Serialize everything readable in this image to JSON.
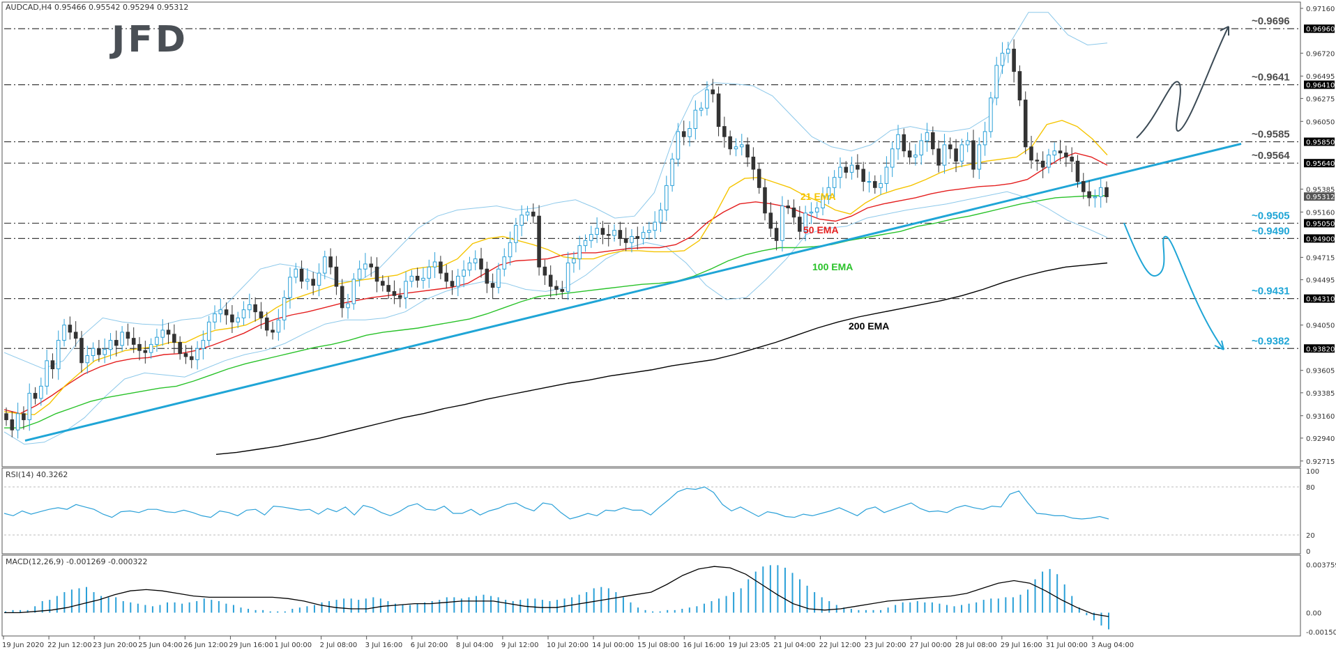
{
  "header": {
    "main": "AUDCAD,H4  0.95466 0.95542 0.95294 0.95312",
    "rsi": "RSI(14) 40.3262",
    "macd": "MACD(12,26,9) -0.001269 -0.000322"
  },
  "logo": {
    "text": "JFD"
  },
  "chart_data": {
    "type": "candlestick",
    "symbol": "AUDCAD",
    "timeframe": "H4",
    "title": "AUDCAD,H4",
    "ohlc_last": {
      "open": 0.95466,
      "high": 0.95542,
      "low": 0.95294,
      "close": 0.95312
    },
    "price_axis": {
      "ylim": [
        0.927,
        0.9716
      ],
      "ticks": [
        "0.97160",
        "0.96720",
        "0.96495",
        "0.96275",
        "0.96050",
        "0.95830",
        "0.95385",
        "0.95160",
        "0.94715",
        "0.94495",
        "0.94275",
        "0.94050",
        "0.93605",
        "0.93385",
        "0.93160",
        "0.92940",
        "0.92715"
      ]
    },
    "badges": [
      {
        "label": "0.96960",
        "value": 0.9696,
        "color": "#000000"
      },
      {
        "label": "0.96410",
        "value": 0.9641,
        "color": "#000000"
      },
      {
        "label": "0.95850",
        "value": 0.9585,
        "color": "#000000"
      },
      {
        "label": "0.95640",
        "value": 0.9564,
        "color": "#000000"
      },
      {
        "label": "0.95312",
        "value": 0.95312,
        "color": "#555555"
      },
      {
        "label": "0.95050",
        "value": 0.9505,
        "color": "#000000"
      },
      {
        "label": "0.94900",
        "value": 0.949,
        "color": "#000000"
      },
      {
        "label": "0.94310",
        "value": 0.9431,
        "color": "#000000"
      },
      {
        "label": "0.93820",
        "value": 0.9382,
        "color": "#000000"
      }
    ],
    "levels": [
      {
        "label": "~0.9696",
        "value": 0.9696,
        "color": "#4d4d4d"
      },
      {
        "label": "~0.9641",
        "value": 0.9641,
        "color": "#4d4d4d"
      },
      {
        "label": "~0.9585",
        "value": 0.9585,
        "color": "#4d4d4d"
      },
      {
        "label": "~0.9564",
        "value": 0.9564,
        "color": "#4d4d4d"
      },
      {
        "label": "~0.9505",
        "value": 0.9505,
        "color": "#1fa5d6"
      },
      {
        "label": "~0.9490",
        "value": 0.949,
        "color": "#1fa5d6"
      },
      {
        "label": "~0.9431",
        "value": 0.9431,
        "color": "#1fa5d6"
      },
      {
        "label": "~0.9382",
        "value": 0.9382,
        "color": "#1fa5d6"
      }
    ],
    "x_labels": [
      "19 Jun 2020",
      "22 Jun 12:00",
      "23 Jun 20:00",
      "25 Jun 04:00",
      "26 Jun 12:00",
      "29 Jun 16:00",
      "1 Jul 00:00",
      "2 Jul 08:00",
      "3 Jul 16:00",
      "6 Jul 20:00",
      "8 Jul 04:00",
      "9 Jul 12:00",
      "10 Jul 20:00",
      "14 Jul 00:00",
      "15 Jul 08:00",
      "16 Jul 16:00",
      "19 Jul 23:05",
      "21 Jul 04:00",
      "22 Jul 12:00",
      "23 Jul 20:00",
      "27 Jul 00:00",
      "28 Jul 08:00",
      "29 Jul 16:00",
      "31 Jul 00:00",
      "3 Aug 04:00"
    ],
    "close": [
      0.9312,
      0.9302,
      0.9318,
      0.9312,
      0.9338,
      0.9333,
      0.9345,
      0.937,
      0.9362,
      0.939,
      0.9405,
      0.9398,
      0.9392,
      0.9368,
      0.9375,
      0.9382,
      0.9376,
      0.9381,
      0.939,
      0.9385,
      0.9398,
      0.9392,
      0.9386,
      0.938,
      0.9378,
      0.9386,
      0.9393,
      0.94,
      0.9396,
      0.9388,
      0.9377,
      0.9374,
      0.9371,
      0.9382,
      0.939,
      0.9408,
      0.9416,
      0.942,
      0.9415,
      0.9408,
      0.9412,
      0.942,
      0.9425,
      0.9418,
      0.9412,
      0.94,
      0.9398,
      0.941,
      0.9432,
      0.9452,
      0.946,
      0.9448,
      0.945,
      0.9444,
      0.9456,
      0.9472,
      0.9462,
      0.9443,
      0.9422,
      0.9426,
      0.945,
      0.946,
      0.9465,
      0.9462,
      0.9448,
      0.9444,
      0.9438,
      0.9434,
      0.9432,
      0.9448,
      0.9453,
      0.9449,
      0.9451,
      0.9462,
      0.9467,
      0.9456,
      0.9448,
      0.9443,
      0.9453,
      0.9459,
      0.9466,
      0.947,
      0.946,
      0.9446,
      0.9442,
      0.946,
      0.9472,
      0.9486,
      0.9503,
      0.9513,
      0.9516,
      0.9512,
      0.9462,
      0.9454,
      0.9443,
      0.944,
      0.9438,
      0.9466,
      0.947,
      0.9483,
      0.9488,
      0.9494,
      0.95,
      0.9494,
      0.9493,
      0.9498,
      0.949,
      0.9486,
      0.9492,
      0.949,
      0.9496,
      0.9498,
      0.9506,
      0.9518,
      0.9542,
      0.9568,
      0.9595,
      0.959,
      0.9598,
      0.9616,
      0.9618,
      0.9636,
      0.9632,
      0.96,
      0.959,
      0.9578,
      0.958,
      0.9582,
      0.957,
      0.9558,
      0.954,
      0.9515,
      0.95,
      0.9488,
      0.9522,
      0.952,
      0.9511,
      0.9497,
      0.9515,
      0.9516,
      0.952,
      0.9532,
      0.954,
      0.955,
      0.956,
      0.9555,
      0.9562,
      0.9558,
      0.9546,
      0.9546,
      0.954,
      0.9544,
      0.956,
      0.9578,
      0.9592,
      0.9576,
      0.957,
      0.9572,
      0.9586,
      0.9594,
      0.9578,
      0.9562,
      0.9582,
      0.9578,
      0.9566,
      0.9582,
      0.9586,
      0.9558,
      0.9582,
      0.9595,
      0.9628,
      0.966,
      0.9672,
      0.9676,
      0.9654,
      0.9626,
      0.958,
      0.9567,
      0.9566,
      0.956,
      0.9572,
      0.9576,
      0.9574,
      0.957,
      0.9566,
      0.9546,
      0.9536,
      0.953,
      0.9531,
      0.954,
      0.9531
    ],
    "ema21": [
      0.932,
      0.9318,
      0.9317,
      0.9328,
      0.9345,
      0.9358,
      0.937,
      0.9375,
      0.938,
      0.9382,
      0.9384,
      0.9388,
      0.9388,
      0.9395,
      0.94,
      0.9402,
      0.9405,
      0.9412,
      0.9422,
      0.943,
      0.9435,
      0.944,
      0.9445,
      0.9448,
      0.945,
      0.9452,
      0.9454,
      0.946,
      0.9462,
      0.9463,
      0.947,
      0.9485,
      0.949,
      0.9492,
      0.9488,
      0.9484,
      0.9479,
      0.9472,
      0.947,
      0.947,
      0.9475,
      0.9478,
      0.9478,
      0.9477,
      0.9477,
      0.9478,
      0.9488,
      0.9512,
      0.954,
      0.9549,
      0.955,
      0.9545,
      0.954,
      0.9532,
      0.9526,
      0.9518,
      0.9514,
      0.9525,
      0.9533,
      0.9538,
      0.9542,
      0.9548,
      0.9555,
      0.956,
      0.9563,
      0.9566,
      0.9568,
      0.957,
      0.958,
      0.9602,
      0.9606,
      0.96,
      0.9588,
      0.9572
    ],
    "ema50": [
      0.9322,
      0.9318,
      0.9326,
      0.9336,
      0.9347,
      0.9357,
      0.9364,
      0.9369,
      0.9372,
      0.9373,
      0.9376,
      0.9377,
      0.938,
      0.9385,
      0.9391,
      0.9397,
      0.9405,
      0.9411,
      0.9415,
      0.9418,
      0.9422,
      0.9426,
      0.9429,
      0.9432,
      0.9434,
      0.9436,
      0.9438,
      0.944,
      0.9442,
      0.9446,
      0.9455,
      0.9464,
      0.9468,
      0.9469,
      0.947,
      0.9474,
      0.9476,
      0.9476,
      0.9478,
      0.948,
      0.9481,
      0.9481,
      0.9484,
      0.9492,
      0.9506,
      0.9516,
      0.9524,
      0.9526,
      0.9524,
      0.9521,
      0.9515,
      0.9509,
      0.9507,
      0.9512,
      0.952,
      0.9524,
      0.9527,
      0.953,
      0.9534,
      0.9537,
      0.9539,
      0.9541,
      0.9542,
      0.9544,
      0.9548,
      0.9558,
      0.9568,
      0.9574,
      0.957,
      0.9562
    ],
    "ema100": [
      0.9304,
      0.9304,
      0.931,
      0.9318,
      0.9324,
      0.933,
      0.9334,
      0.9337,
      0.934,
      0.9343,
      0.9345,
      0.935,
      0.9356,
      0.9362,
      0.9367,
      0.9371,
      0.9375,
      0.9379,
      0.9383,
      0.9386,
      0.939,
      0.9395,
      0.9398,
      0.94,
      0.9402,
      0.9405,
      0.9408,
      0.9411,
      0.9416,
      0.9422,
      0.9428,
      0.9433,
      0.9435,
      0.9437,
      0.9439,
      0.9441,
      0.9443,
      0.9445,
      0.9446,
      0.9448,
      0.9453,
      0.946,
      0.9468,
      0.9474,
      0.9478,
      0.9481,
      0.9481,
      0.9482,
      0.9484,
      0.9488,
      0.9491,
      0.9494,
      0.9497,
      0.9502,
      0.9505,
      0.9509,
      0.9512,
      0.9516,
      0.952,
      0.9524,
      0.9527,
      0.953,
      0.9531,
      0.9532,
      0.9532
    ],
    "ema200": [
      0.9278,
      0.928,
      0.9283,
      0.9286,
      0.929,
      0.9294,
      0.9299,
      0.9304,
      0.9309,
      0.9314,
      0.9318,
      0.9323,
      0.9327,
      0.9332,
      0.9336,
      0.934,
      0.9344,
      0.9348,
      0.9351,
      0.9355,
      0.9358,
      0.9361,
      0.9365,
      0.9368,
      0.9371,
      0.9376,
      0.9382,
      0.9388,
      0.9395,
      0.9402,
      0.9408,
      0.9413,
      0.9417,
      0.9421,
      0.9425,
      0.9429,
      0.9434,
      0.944,
      0.9447,
      0.9453,
      0.9458,
      0.9462,
      0.9464,
      0.9466
    ],
    "bb_upper": [
      0.9378,
      0.937,
      0.9362,
      0.937,
      0.9395,
      0.9412,
      0.9408,
      0.9406,
      0.9405,
      0.941,
      0.9412,
      0.942,
      0.944,
      0.946,
      0.9465,
      0.9462,
      0.9455,
      0.9448,
      0.9448,
      0.946,
      0.948,
      0.95,
      0.9512,
      0.9518,
      0.952,
      0.9522,
      0.9518,
      0.952,
      0.9525,
      0.9528,
      0.952,
      0.951,
      0.9512,
      0.9535,
      0.959,
      0.963,
      0.9643,
      0.9642,
      0.964,
      0.963,
      0.961,
      0.959,
      0.958,
      0.9576,
      0.9582,
      0.9596,
      0.96,
      0.9596,
      0.9595,
      0.9598,
      0.961,
      0.968,
      0.9712,
      0.9712,
      0.969,
      0.968,
      0.9682
    ],
    "bb_lower": [
      0.93,
      0.9288,
      0.929,
      0.93,
      0.9314,
      0.9334,
      0.9352,
      0.9358,
      0.9356,
      0.9354,
      0.9362,
      0.937,
      0.9376,
      0.938,
      0.9387,
      0.9397,
      0.9406,
      0.941,
      0.941,
      0.9412,
      0.9418,
      0.943,
      0.9438,
      0.9444,
      0.9448,
      0.9446,
      0.944,
      0.9438,
      0.9442,
      0.9454,
      0.947,
      0.948,
      0.9486,
      0.9482,
      0.9466,
      0.9444,
      0.943,
      0.9432,
      0.945,
      0.947,
      0.9494,
      0.95,
      0.9502,
      0.951,
      0.9514,
      0.9518,
      0.9521,
      0.9524,
      0.9528,
      0.9532,
      0.9536,
      0.953,
      0.952,
      0.9508,
      0.95,
      0.9491
    ],
    "trendline": {
      "from": [
        0,
        0.92915
      ],
      "to": [
        1,
        0.9583
      ]
    },
    "ema_labels": [
      {
        "text": "21 EMA",
        "color": "#f5c400"
      },
      {
        "text": "50 EMA",
        "color": "#e41e1e"
      },
      {
        "text": "100 EMA",
        "color": "#29c229"
      },
      {
        "text": "200 EMA",
        "color": "#000000"
      }
    ],
    "rsi": {
      "name": "RSI(14)",
      "value": 40.3262,
      "ylim": [
        0,
        100
      ],
      "ticks": [
        "100",
        "80",
        "20",
        "0"
      ],
      "levels": [
        80,
        20
      ],
      "values": [
        47,
        44,
        50,
        46,
        49,
        52,
        54,
        52,
        58,
        55,
        52,
        46,
        42,
        49,
        50,
        48,
        52,
        52,
        49,
        48,
        51,
        48,
        44,
        42,
        50,
        48,
        44,
        51,
        52,
        45,
        56,
        55,
        53,
        51,
        52,
        46,
        53,
        49,
        55,
        45,
        57,
        54,
        48,
        44,
        49,
        56,
        59,
        52,
        51,
        56,
        47,
        47,
        52,
        45,
        50,
        53,
        58,
        60,
        54,
        50,
        60,
        58,
        48,
        40,
        43,
        47,
        44,
        51,
        50,
        54,
        51,
        51,
        45,
        55,
        64,
        74,
        78,
        77,
        80,
        73,
        58,
        50,
        55,
        49,
        43,
        49,
        47,
        43,
        42,
        46,
        44,
        47,
        50,
        54,
        49,
        44,
        52,
        55,
        48,
        52,
        56,
        60,
        53,
        49,
        50,
        48,
        54,
        57,
        54,
        52,
        56,
        55,
        71,
        75,
        60,
        47,
        46,
        44,
        44,
        41,
        40,
        41,
        43,
        40
      ]
    },
    "macd": {
      "name": "MACD(12,26,9)",
      "main": -0.001269,
      "signal": -0.000322,
      "ticks": [
        "0.003759",
        "0.00",
        "-0.001503"
      ],
      "ylim": [
        -0.0016,
        0.0041
      ],
      "hist": [
        0.0001,
        0.0002,
        0.0002,
        0.0002,
        0.0005,
        0.0009,
        0.001,
        0.0013,
        0.0016,
        0.0018,
        0.0019,
        0.002,
        0.0016,
        0.0013,
        0.0012,
        0.0012,
        0.0009,
        0.0008,
        0.0007,
        0.0006,
        0.0005,
        0.0006,
        0.0008,
        0.0008,
        0.0007,
        0.0008,
        0.0009,
        0.0011,
        0.001,
        0.0009,
        0.0007,
        0.0006,
        0.0004,
        0.0003,
        0.0002,
        0.0002,
        0.0001,
        0.0001,
        0.0001,
        0.0003,
        0.0004,
        0.0005,
        0.0006,
        0.0008,
        0.0009,
        0.001,
        0.0011,
        0.0011,
        0.001,
        0.0011,
        0.0012,
        0.0011,
        0.0009,
        0.0007,
        0.0006,
        0.0006,
        0.0007,
        0.0008,
        0.0009,
        0.001,
        0.0012,
        0.0012,
        0.0011,
        0.0012,
        0.0013,
        0.0014,
        0.0013,
        0.0012,
        0.001,
        0.0009,
        0.001,
        0.0011,
        0.0011,
        0.001,
        0.0009,
        0.001,
        0.0011,
        0.0012,
        0.0014,
        0.0016,
        0.0019,
        0.002,
        0.0019,
        0.0016,
        0.0012,
        0.0008,
        0.0004,
        0.0002,
        0.0001,
        0.0001,
        0.0002,
        0.0002,
        0.0003,
        0.0004,
        0.0005,
        0.0007,
        0.0009,
        0.0011,
        0.0013,
        0.0016,
        0.0019,
        0.0026,
        0.0032,
        0.0036,
        0.0037,
        0.0037,
        0.0035,
        0.0031,
        0.0026,
        0.0021,
        0.0016,
        0.0012,
        0.0009,
        0.0006,
        0.0004,
        0.0003,
        0.0002,
        0.0002,
        0.0002,
        0.0002,
        0.0004,
        0.0006,
        0.0008,
        0.0008,
        0.0009,
        0.0008,
        0.0008,
        0.0007,
        0.0006,
        0.0005,
        0.0006,
        0.0007,
        0.0008,
        0.001,
        0.0011,
        0.0011,
        0.0012,
        0.0012,
        0.0014,
        0.0018,
        0.0026,
        0.0032,
        0.0034,
        0.003,
        0.0022,
        0.0013,
        0.0004,
        -0.0002,
        -0.0006,
        -0.001,
        -0.0013
      ],
      "signal_line": [
        0.0,
        0.0,
        0.0001,
        0.0002,
        0.0004,
        0.0007,
        0.001,
        0.0014,
        0.0017,
        0.0018,
        0.0017,
        0.0015,
        0.0013,
        0.0012,
        0.0012,
        0.0012,
        0.0012,
        0.0012,
        0.0011,
        0.0009,
        0.0006,
        0.0004,
        0.0003,
        0.0003,
        0.0005,
        0.0006,
        0.0007,
        0.0007,
        0.0008,
        0.0009,
        0.0009,
        0.0009,
        0.0007,
        0.0005,
        0.0004,
        0.0004,
        0.0006,
        0.0008,
        0.001,
        0.0012,
        0.0014,
        0.0016,
        0.0022,
        0.0029,
        0.0034,
        0.0036,
        0.0035,
        0.003,
        0.0022,
        0.0014,
        0.0007,
        0.0003,
        0.0002,
        0.0003,
        0.0005,
        0.0007,
        0.0009,
        0.001,
        0.0011,
        0.0012,
        0.0013,
        0.0015,
        0.0019,
        0.0023,
        0.0025,
        0.0023,
        0.0017,
        0.001,
        0.0004,
        -0.0001,
        -0.0003
      ]
    },
    "grid": false,
    "legend": "none",
    "scenarios": [
      {
        "direction": "up",
        "color": "#3b4a55"
      },
      {
        "direction": "down",
        "color": "#1fa5d6"
      }
    ]
  }
}
